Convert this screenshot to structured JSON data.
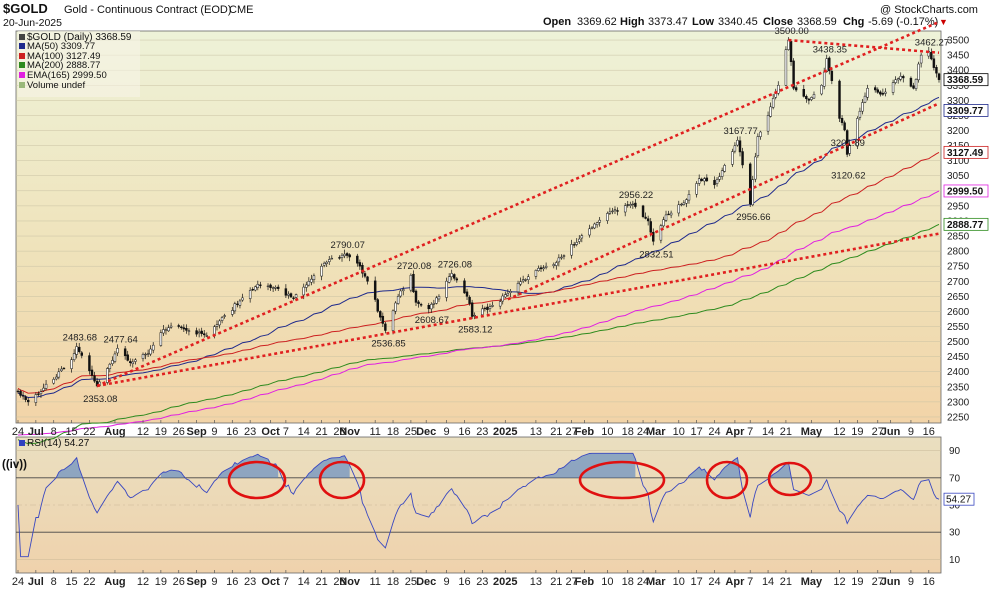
{
  "header": {
    "symbol_title": "$GOLD",
    "description": "Gold - Continuous Contract (EOD)",
    "exchange": "CME",
    "date": "20-Jun-2025",
    "watermark": "@ StockCharts.com",
    "ohlc": {
      "open_label": "Open",
      "open": "3369.62",
      "high_label": "High",
      "high": "3373.47",
      "low_label": "Low",
      "low": "3340.45",
      "close_label": "Close",
      "close": "3368.59",
      "chg_label": "Chg",
      "chg": "-5.69 (-0.17%)"
    }
  },
  "legend": [
    {
      "text": "$GOLD (Daily) 3368.59",
      "color": "#000000"
    },
    {
      "text": "MA(50) 3309.77",
      "color": "#1f2a8c"
    },
    {
      "text": "MA(100) 3127.49",
      "color": "#cc2020"
    },
    {
      "text": "MA(200) 2888.77",
      "color": "#2e8b1e"
    },
    {
      "text": "EMA(165) 2999.50",
      "color": "#e020e0"
    },
    {
      "text": "Volume undef",
      "color": "#9ab87a"
    }
  ],
  "rsi": {
    "legend_text": "RSI(14) 54.27",
    "annotation": "((iv))",
    "last_value": "54.27",
    "ticks": [
      "90",
      "70",
      "50",
      "30",
      "10"
    ],
    "overbought": 70,
    "oversold": 30
  },
  "last_labels": [
    "3368.59",
    "3309.77",
    "3127.49",
    "2999.50",
    "2888.77"
  ],
  "peak_labels": [
    "3500.00",
    "3438.35",
    "3462.27",
    "3167.77",
    "3201.89",
    "3120.62",
    "2956.22",
    "2956.66",
    "2832.51",
    "2790.07",
    "2720.08",
    "2726.08",
    "2608.67",
    "2583.12",
    "2536.85",
    "2483.68",
    "2477.64",
    "2353.08"
  ],
  "x_ticks": [
    "24",
    "Jul",
    "8",
    "15",
    "22",
    "Aug",
    "12",
    "19",
    "26",
    "Sep",
    "9",
    "16",
    "23",
    "Oct",
    "7",
    "14",
    "21",
    "28",
    "Nov",
    "11",
    "18",
    "25",
    "Dec",
    "9",
    "16",
    "23",
    "2025",
    "13",
    "21",
    "27",
    "Feb",
    "10",
    "18",
    "24",
    "Mar",
    "10",
    "17",
    "24",
    "Apr",
    "7",
    "14",
    "21",
    "May",
    "12",
    "19",
    "27",
    "Jun",
    "9",
    "16"
  ],
  "chart_data": {
    "type": "candlestick",
    "title": "$GOLD Gold - Continuous Contract (EOD) CME",
    "y_ticks": [
      2250,
      2300,
      2350,
      2400,
      2450,
      2500,
      2550,
      2600,
      2650,
      2700,
      2750,
      2800,
      2850,
      2900,
      2950,
      3000,
      3050,
      3100,
      3150,
      3200,
      3250,
      3300,
      3350,
      3400,
      3450,
      3500
    ],
    "ylim": [
      2230,
      3530
    ],
    "x_start": "2024-06-24",
    "x_end": "2025-06-20",
    "price_anchors": [
      [
        "2024-06-24",
        2335
      ],
      [
        "2024-06-28",
        2300
      ],
      [
        "2024-07-08",
        2375
      ],
      [
        "2024-07-15",
        2440
      ],
      [
        "2024-07-17",
        2483.68
      ],
      [
        "2024-07-25",
        2353.08
      ],
      [
        "2024-07-30",
        2425
      ],
      [
        "2024-08-02",
        2477.64
      ],
      [
        "2024-08-07",
        2430
      ],
      [
        "2024-08-14",
        2460
      ],
      [
        "2024-08-20",
        2540
      ],
      [
        "2024-08-26",
        2550
      ],
      [
        "2024-09-06",
        2520
      ],
      [
        "2024-09-12",
        2580
      ],
      [
        "2024-09-20",
        2645
      ],
      [
        "2024-09-26",
        2690
      ],
      [
        "2024-10-03",
        2680
      ],
      [
        "2024-10-10",
        2645
      ],
      [
        "2024-10-16",
        2700
      ],
      [
        "2024-10-22",
        2760
      ],
      [
        "2024-10-30",
        2790.07
      ],
      [
        "2024-11-05",
        2750
      ],
      [
        "2024-11-08",
        2700
      ],
      [
        "2024-11-14",
        2560
      ],
      [
        "2024-11-15",
        2536.85
      ],
      [
        "2024-11-20",
        2650
      ],
      [
        "2024-11-25",
        2720.08
      ],
      [
        "2024-11-27",
        2630
      ],
      [
        "2024-12-02",
        2608.67
      ],
      [
        "2024-12-06",
        2650
      ],
      [
        "2024-12-11",
        2726.08
      ],
      [
        "2024-12-17",
        2650
      ],
      [
        "2024-12-19",
        2583.12
      ],
      [
        "2024-12-27",
        2620
      ],
      [
        "2025-01-02",
        2660
      ],
      [
        "2025-01-10",
        2715
      ],
      [
        "2025-01-17",
        2750
      ],
      [
        "2025-01-24",
        2785
      ],
      [
        "2025-01-30",
        2840
      ],
      [
        "2025-02-05",
        2890
      ],
      [
        "2025-02-11",
        2930
      ],
      [
        "2025-02-20",
        2956.22
      ],
      [
        "2025-02-26",
        2900
      ],
      [
        "2025-02-28",
        2832.51
      ],
      [
        "2025-03-05",
        2920
      ],
      [
        "2025-03-12",
        2960
      ],
      [
        "2025-03-18",
        3040
      ],
      [
        "2025-03-24",
        3020
      ],
      [
        "2025-03-31",
        3130
      ],
      [
        "2025-04-02",
        3167.77
      ],
      [
        "2025-04-07",
        2956.66
      ],
      [
        "2025-04-10",
        3180
      ],
      [
        "2025-04-14",
        3250
      ],
      [
        "2025-04-18",
        3350
      ],
      [
        "2025-04-22",
        3500.0
      ],
      [
        "2025-04-24",
        3340
      ],
      [
        "2025-04-30",
        3300
      ],
      [
        "2025-05-05",
        3350
      ],
      [
        "2025-05-07",
        3438.35
      ],
      [
        "2025-05-12",
        3240
      ],
      [
        "2025-05-14",
        3201.89
      ],
      [
        "2025-05-15",
        3120.62
      ],
      [
        "2025-05-19",
        3240
      ],
      [
        "2025-05-23",
        3340
      ],
      [
        "2025-05-29",
        3320
      ],
      [
        "2025-06-05",
        3380
      ],
      [
        "2025-06-10",
        3340
      ],
      [
        "2025-06-13",
        3450
      ],
      [
        "2025-06-16",
        3462.27
      ],
      [
        "2025-06-20",
        3368.59
      ]
    ],
    "moving_averages": [
      {
        "name": "MA(50)",
        "color": "#1f2a8c",
        "last": 3309.77
      },
      {
        "name": "MA(100)",
        "color": "#cc2020",
        "last": 3127.49
      },
      {
        "name": "MA(200)",
        "color": "#2e8b1e",
        "last": 2888.77
      },
      {
        "name": "EMA(165)",
        "color": "#e020e0",
        "last": 2999.5
      }
    ],
    "rsi_ylim": [
      0,
      100
    ],
    "rsi_last": 54.27,
    "trendlines": [
      {
        "from": [
          "2024-07-25",
          2353
        ],
        "to": [
          "2025-06-20",
          3560
        ]
      },
      {
        "from": [
          "2025-04-22",
          3500
        ],
        "to": [
          "2025-06-20",
          3458
        ]
      },
      {
        "from": [
          "2024-07-25",
          2353
        ],
        "to": [
          "2025-06-20",
          2858
        ]
      },
      {
        "from": [
          "2025-01-02",
          2640
        ],
        "to": [
          "2025-06-20",
          3290
        ]
      }
    ]
  }
}
